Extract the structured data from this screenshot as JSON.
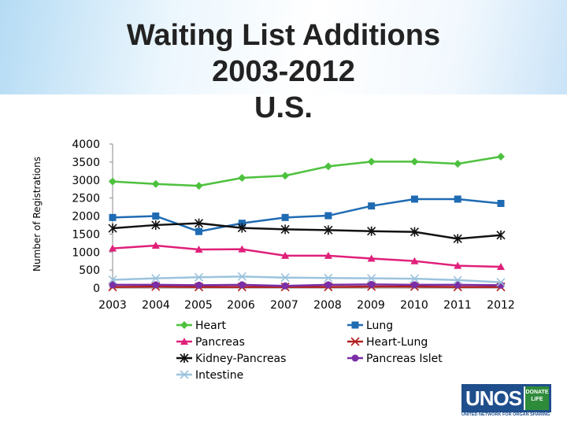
{
  "page": {
    "title_lines": [
      "Waiting List Additions",
      "2003-2012",
      "U.S."
    ],
    "ylabel": "Number of Registrations"
  },
  "logo": {
    "name": "UNOS",
    "badge": "DONATE LIFE",
    "tagline": "UNITED NETWORK FOR ORGAN SHARING"
  },
  "chart_data": {
    "type": "line",
    "title": "Waiting List Additions 2003-2012 U.S.",
    "xlabel": "",
    "ylabel": "Number of Registrations",
    "categories": [
      "2003",
      "2004",
      "2005",
      "2006",
      "2007",
      "2008",
      "2009",
      "2010",
      "2011",
      "2012"
    ],
    "ylim": [
      0,
      4000
    ],
    "yticks": [
      "0",
      "500",
      "1000",
      "1500",
      "2000",
      "2500",
      "3000",
      "3500",
      "4000"
    ],
    "grid": false,
    "legend_position": "bottom",
    "series": [
      {
        "name": "Heart",
        "color": "#4dc13d",
        "marker": "diamond",
        "values": [
          2960,
          2890,
          2840,
          3060,
          3120,
          3380,
          3510,
          3510,
          3450,
          3650
        ]
      },
      {
        "name": "Lung",
        "color": "#1f6bb3",
        "marker": "square",
        "values": [
          1960,
          2000,
          1570,
          1800,
          1960,
          2010,
          2280,
          2470,
          2470,
          2350
        ]
      },
      {
        "name": "Pancreas",
        "color": "#e0207a",
        "marker": "triangle",
        "values": [
          1100,
          1180,
          1070,
          1080,
          900,
          900,
          820,
          750,
          620,
          590
        ]
      },
      {
        "name": "Heart-Lung",
        "color": "#b22222",
        "marker": "x",
        "values": [
          30,
          40,
          30,
          30,
          30,
          30,
          40,
          40,
          30,
          30
        ]
      },
      {
        "name": "Kidney-Pancreas",
        "color": "#111111",
        "marker": "asterisk",
        "values": [
          1660,
          1750,
          1800,
          1670,
          1630,
          1610,
          1580,
          1560,
          1370,
          1470
        ]
      },
      {
        "name": "Pancreas Islet",
        "color": "#7b2fa6",
        "marker": "circle",
        "values": [
          90,
          90,
          80,
          90,
          60,
          90,
          100,
          90,
          90,
          80
        ]
      },
      {
        "name": "Intestine",
        "color": "#9cc3dd",
        "marker": "x",
        "values": [
          230,
          270,
          300,
          320,
          290,
          280,
          270,
          260,
          220,
          160
        ]
      }
    ]
  }
}
